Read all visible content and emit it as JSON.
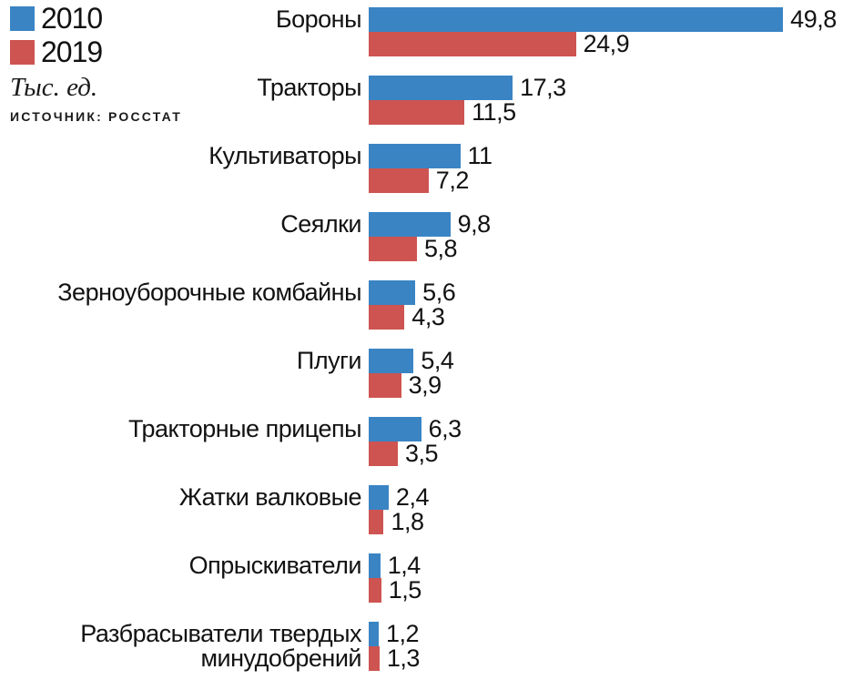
{
  "legend": {
    "items": [
      {
        "label": "2010",
        "color": "#3a84c4"
      },
      {
        "label": "2019",
        "color": "#cd5450"
      }
    ],
    "unit_label": "Тыс. ед.",
    "source_label": "ИСТОЧНИК: РОССТАТ"
  },
  "chart_data": {
    "type": "bar",
    "orientation": "horizontal",
    "title": "",
    "xlabel": "Тыс. ед.",
    "ylabel": "",
    "source": "Росстат",
    "grid": false,
    "legend_position": "top-left",
    "decimal_separator": ",",
    "xlim": [
      0,
      50
    ],
    "categories": [
      "Бороны",
      "Тракторы",
      "Культиваторы",
      "Сеялки",
      "Зерноуборочные комбайны",
      "Плуги",
      "Тракторные прицепы",
      "Жатки валковые",
      "Опрыскиватели",
      "Разбрасыватели твердых\nминудобрений"
    ],
    "series": [
      {
        "name": "2010",
        "color": "#3a84c4",
        "values": [
          49.8,
          17.3,
          11,
          9.8,
          5.6,
          5.4,
          6.3,
          2.4,
          1.4,
          1.2
        ]
      },
      {
        "name": "2019",
        "color": "#cd5450",
        "values": [
          24.9,
          11.5,
          7.2,
          5.8,
          4.3,
          3.9,
          3.5,
          1.8,
          1.5,
          1.3
        ]
      }
    ]
  }
}
